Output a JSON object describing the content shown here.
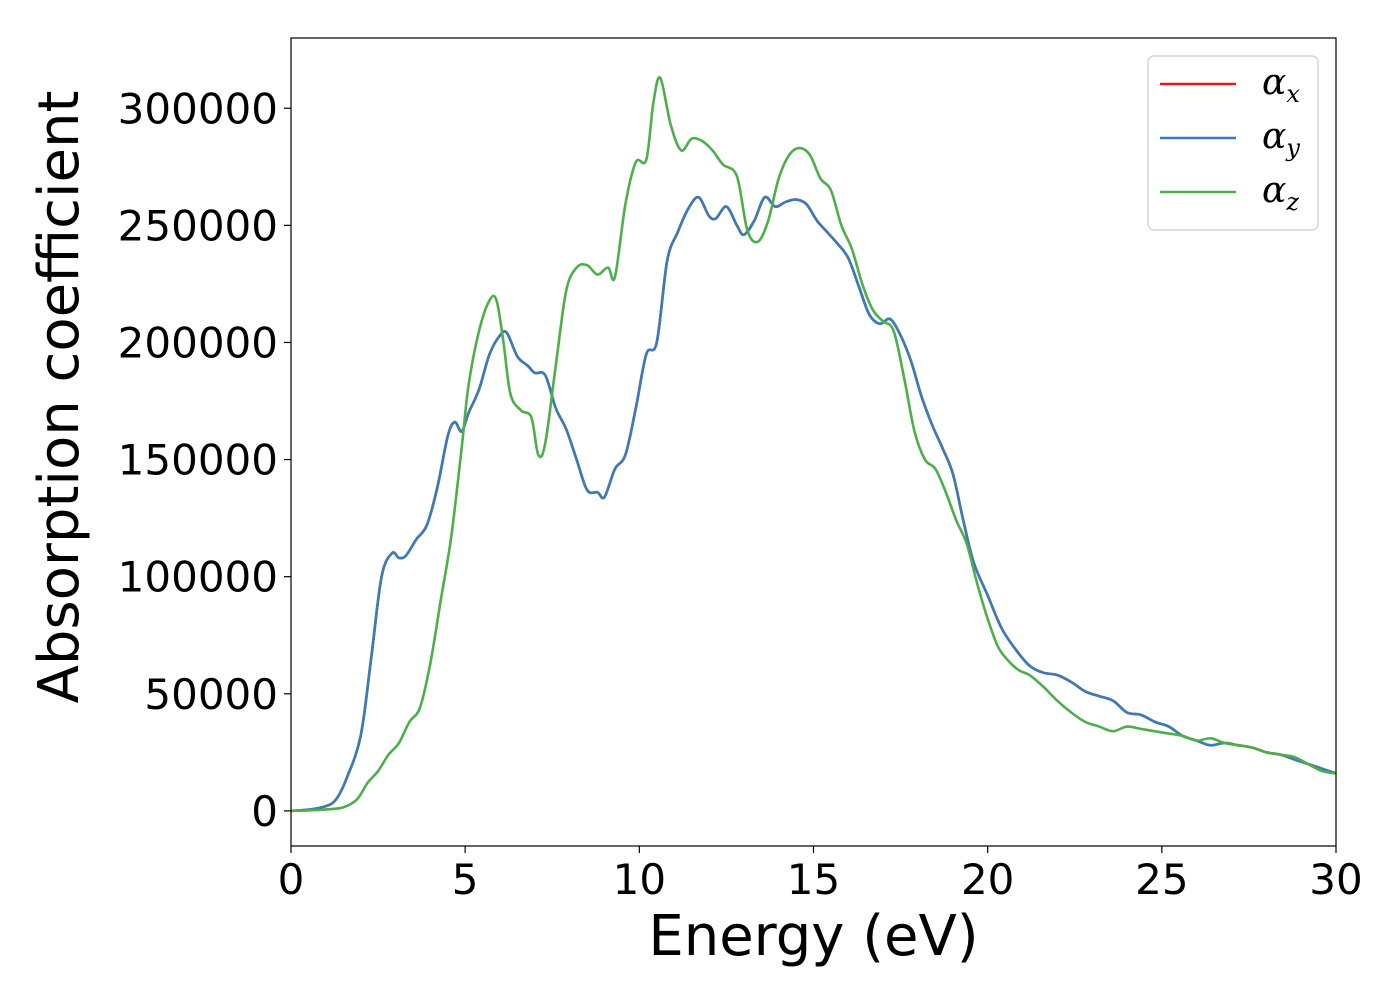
{
  "chart_data": {
    "type": "line",
    "xlabel": "Energy (eV)",
    "ylabel": "Absorption coefficient",
    "xlim": [
      0,
      30
    ],
    "ylim": [
      -15000,
      330000
    ],
    "xticks": [
      0,
      5,
      10,
      15,
      20,
      25,
      30
    ],
    "yticks": [
      0,
      50000,
      100000,
      150000,
      200000,
      250000,
      300000
    ],
    "grid": false,
    "legend_position": "top-right",
    "series": [
      {
        "name": "α_x",
        "base": "α",
        "sub": "x",
        "color": "#e41a1c",
        "x": [
          0,
          0.5,
          1,
          1.3,
          1.6,
          2,
          2.3,
          2.6,
          2.9,
          3.1,
          3.3,
          3.6,
          3.9,
          4.2,
          4.5,
          4.7,
          4.9,
          5.1,
          5.4,
          5.7,
          6,
          6.2,
          6.5,
          6.8,
          7,
          7.3,
          7.6,
          7.9,
          8.2,
          8.5,
          8.8,
          9,
          9.3,
          9.6,
          9.9,
          10.2,
          10.5,
          10.8,
          11.1,
          11.4,
          11.7,
          12,
          12.2,
          12.5,
          12.8,
          13,
          13.3,
          13.6,
          13.9,
          14.2,
          14.5,
          14.8,
          15.1,
          15.4,
          15.7,
          16,
          16.3,
          16.6,
          16.9,
          17.2,
          17.5,
          17.8,
          18.1,
          18.4,
          18.7,
          19,
          19.3,
          19.6,
          20,
          20.4,
          20.8,
          21.2,
          21.6,
          22,
          22.4,
          22.8,
          23.2,
          23.6,
          24,
          24.4,
          24.8,
          25.2,
          25.6,
          26,
          26.4,
          26.8,
          27.2,
          27.6,
          28,
          28.4,
          28.8,
          29.2,
          29.6,
          30
        ],
        "y": [
          0,
          500,
          2000,
          5000,
          14000,
          32000,
          65000,
          100000,
          110000,
          108000,
          109000,
          116000,
          122000,
          138000,
          160000,
          166000,
          162000,
          170000,
          180000,
          195000,
          203000,
          204000,
          194000,
          190000,
          187000,
          186000,
          172000,
          163000,
          150000,
          137000,
          136000,
          134000,
          146000,
          152000,
          172000,
          195000,
          200000,
          235000,
          247000,
          257000,
          262000,
          254000,
          253000,
          258000,
          250000,
          246000,
          252000,
          262000,
          258000,
          260000,
          261000,
          259000,
          252000,
          247000,
          242000,
          236000,
          224000,
          212000,
          208000,
          210000,
          203000,
          192000,
          177000,
          165000,
          155000,
          144000,
          124000,
          106000,
          92000,
          78000,
          69000,
          62000,
          59000,
          58000,
          55000,
          51000,
          49000,
          47000,
          42000,
          41000,
          38000,
          36000,
          32000,
          30000,
          28000,
          29000,
          28000,
          27000,
          25000,
          24000,
          22000,
          20000,
          18000,
          16000
        ]
      },
      {
        "name": "α_y",
        "base": "α",
        "sub": "y",
        "color": "#377eb8",
        "x": [
          0,
          0.5,
          1,
          1.3,
          1.6,
          2,
          2.3,
          2.6,
          2.9,
          3.1,
          3.3,
          3.6,
          3.9,
          4.2,
          4.5,
          4.7,
          4.9,
          5.1,
          5.4,
          5.7,
          6,
          6.2,
          6.5,
          6.8,
          7,
          7.3,
          7.6,
          7.9,
          8.2,
          8.5,
          8.8,
          9,
          9.3,
          9.6,
          9.9,
          10.2,
          10.5,
          10.8,
          11.1,
          11.4,
          11.7,
          12,
          12.2,
          12.5,
          12.8,
          13,
          13.3,
          13.6,
          13.9,
          14.2,
          14.5,
          14.8,
          15.1,
          15.4,
          15.7,
          16,
          16.3,
          16.6,
          16.9,
          17.2,
          17.5,
          17.8,
          18.1,
          18.4,
          18.7,
          19,
          19.3,
          19.6,
          20,
          20.4,
          20.8,
          21.2,
          21.6,
          22,
          22.4,
          22.8,
          23.2,
          23.6,
          24,
          24.4,
          24.8,
          25.2,
          25.6,
          26,
          26.4,
          26.8,
          27.2,
          27.6,
          28,
          28.4,
          28.8,
          29.2,
          29.6,
          30
        ],
        "y": [
          0,
          500,
          2000,
          5000,
          14000,
          32000,
          65000,
          100000,
          110000,
          108000,
          109000,
          116000,
          122000,
          138000,
          160000,
          166000,
          162000,
          170000,
          180000,
          195000,
          203000,
          204000,
          194000,
          190000,
          187000,
          186000,
          172000,
          163000,
          150000,
          137000,
          136000,
          134000,
          146000,
          152000,
          172000,
          195000,
          200000,
          235000,
          247000,
          257000,
          262000,
          254000,
          253000,
          258000,
          250000,
          246000,
          252000,
          262000,
          258000,
          260000,
          261000,
          259000,
          252000,
          247000,
          242000,
          236000,
          224000,
          212000,
          208000,
          210000,
          203000,
          192000,
          177000,
          165000,
          155000,
          144000,
          124000,
          106000,
          92000,
          78000,
          69000,
          62000,
          59000,
          58000,
          55000,
          51000,
          49000,
          47000,
          42000,
          41000,
          38000,
          36000,
          32000,
          30000,
          28000,
          29000,
          28000,
          27000,
          25000,
          24000,
          22000,
          20000,
          18000,
          16000
        ]
      },
      {
        "name": "α_z",
        "base": "α",
        "sub": "z",
        "color": "#4daf4a",
        "x": [
          0,
          0.5,
          1,
          1.5,
          1.9,
          2.2,
          2.5,
          2.8,
          3.1,
          3.4,
          3.7,
          4,
          4.3,
          4.6,
          4.9,
          5.1,
          5.4,
          5.7,
          5.9,
          6.1,
          6.3,
          6.6,
          6.9,
          7.1,
          7.3,
          7.6,
          7.9,
          8.2,
          8.5,
          8.8,
          9.1,
          9.3,
          9.6,
          9.9,
          10.2,
          10.4,
          10.6,
          10.9,
          11.2,
          11.5,
          11.8,
          12.1,
          12.4,
          12.8,
          13.1,
          13.4,
          13.7,
          14,
          14.3,
          14.6,
          14.9,
          15.2,
          15.5,
          15.8,
          16.1,
          16.4,
          16.7,
          17,
          17.3,
          17.6,
          17.9,
          18.2,
          18.5,
          18.8,
          19.1,
          19.4,
          19.7,
          20,
          20.3,
          20.6,
          20.9,
          21.2,
          21.6,
          22,
          22.4,
          22.8,
          23.2,
          23.6,
          24,
          24.4,
          24.8,
          25.2,
          25.6,
          26,
          26.4,
          26.8,
          27.2,
          27.6,
          28,
          28.4,
          28.8,
          29.2,
          29.6,
          30
        ],
        "y": [
          0,
          200,
          600,
          1500,
          5000,
          12000,
          17000,
          24000,
          29000,
          38000,
          44000,
          63000,
          90000,
          117000,
          155000,
          182000,
          205000,
          218000,
          218000,
          200000,
          178000,
          171000,
          168000,
          152000,
          157000,
          190000,
          222000,
          232000,
          233000,
          229000,
          232000,
          228000,
          259000,
          277000,
          278000,
          302000,
          313000,
          293000,
          282000,
          287000,
          286000,
          282000,
          276000,
          271000,
          248000,
          243000,
          252000,
          270000,
          280000,
          283000,
          280000,
          270000,
          265000,
          250000,
          240000,
          225000,
          214000,
          209000,
          205000,
          185000,
          162000,
          150000,
          146000,
          136000,
          124000,
          114000,
          97000,
          82000,
          70000,
          64000,
          60000,
          58000,
          53000,
          47000,
          42000,
          38000,
          36000,
          34000,
          36000,
          35000,
          34000,
          33000,
          32000,
          30000,
          31000,
          29000,
          28000,
          27000,
          25000,
          24000,
          23000,
          20000,
          17000,
          16000
        ]
      }
    ]
  }
}
